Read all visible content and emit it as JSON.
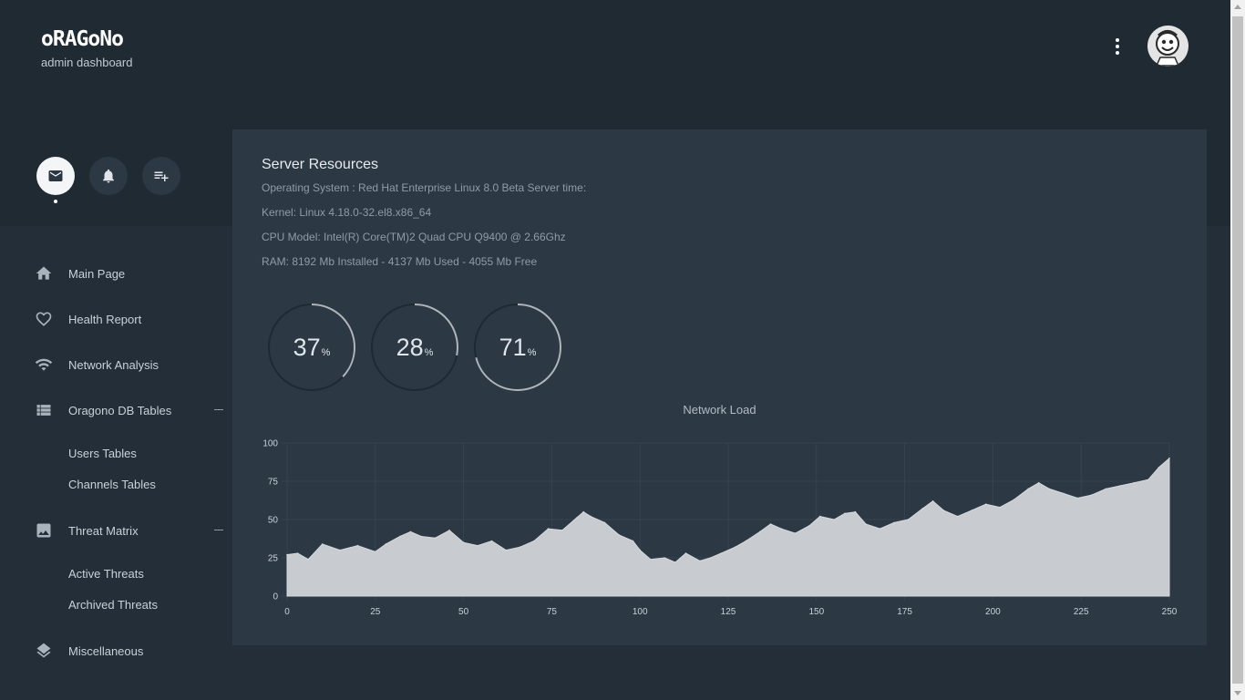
{
  "brand": {
    "logo": "oRAGoNo",
    "subtitle": "admin dashboard"
  },
  "header": {
    "menu_icon": "more-vertical-icon",
    "avatar_icon": "user-avatar"
  },
  "quick_actions": [
    {
      "icon": "mail-icon",
      "active": true
    },
    {
      "icon": "bell-icon",
      "active": false
    },
    {
      "icon": "playlist-add-icon",
      "active": false
    }
  ],
  "sidebar": {
    "items": [
      {
        "label": "Main Page",
        "icon": "home-icon"
      },
      {
        "label": "Health Report",
        "icon": "heart-icon"
      },
      {
        "label": "Network Analysis",
        "icon": "wifi-icon"
      },
      {
        "label": "Oragono DB Tables",
        "icon": "table-icon",
        "expanded": true
      },
      {
        "label": "Threat Matrix",
        "icon": "image-icon",
        "expanded": true
      },
      {
        "label": "Miscellaneous",
        "icon": "layers-icon"
      }
    ],
    "db_tables": [
      "Users Tables",
      "Channels Tables"
    ],
    "threats": [
      "Active Threats",
      "Archived Threats"
    ]
  },
  "panel": {
    "title": "Server Resources",
    "os": "Operating System : Red Hat Enterprise Linux 8.0 Beta Server time:",
    "kernel": "Kernel: Linux 4.18.0-32.el8.x86_64",
    "cpu": "CPU Model: Intel(R) Core(TM)2 Quad CPU Q9400 @ 2.66Ghz",
    "ram": "RAM: 8192 Mb Installed - 4137 Mb Used - 4055 Mb Free"
  },
  "gauges": [
    {
      "value": "37",
      "unit": "%",
      "fraction": 0.37
    },
    {
      "value": "28",
      "unit": "%",
      "fraction": 0.28
    },
    {
      "value": "71",
      "unit": "%",
      "fraction": 0.71
    }
  ],
  "colors": {
    "fill": "#c8ccd0",
    "track": "#1e2a33",
    "arc": "#aeb5bb"
  },
  "chart_data": {
    "type": "area",
    "title": "Network Load",
    "xlim": [
      0,
      250
    ],
    "ylim": [
      0,
      100
    ],
    "x_ticks": [
      0,
      25,
      50,
      75,
      100,
      125,
      150,
      175,
      200,
      225,
      250
    ],
    "y_ticks": [
      0,
      25,
      50,
      75,
      100
    ],
    "grid": true,
    "points": [
      [
        0,
        27
      ],
      [
        3,
        28
      ],
      [
        6,
        24
      ],
      [
        10,
        34
      ],
      [
        15,
        30
      ],
      [
        20,
        33
      ],
      [
        25,
        29
      ],
      [
        28,
        34
      ],
      [
        32,
        39
      ],
      [
        35,
        42
      ],
      [
        38,
        39
      ],
      [
        42,
        38
      ],
      [
        46,
        43
      ],
      [
        50,
        35
      ],
      [
        54,
        33
      ],
      [
        58,
        36
      ],
      [
        62,
        30
      ],
      [
        66,
        32
      ],
      [
        70,
        36
      ],
      [
        74,
        44
      ],
      [
        78,
        43
      ],
      [
        82,
        51
      ],
      [
        84,
        55
      ],
      [
        86,
        52
      ],
      [
        90,
        48
      ],
      [
        94,
        40
      ],
      [
        98,
        36
      ],
      [
        100,
        30
      ],
      [
        103,
        24
      ],
      [
        107,
        25
      ],
      [
        110,
        22
      ],
      [
        113,
        28
      ],
      [
        117,
        23
      ],
      [
        120,
        25
      ],
      [
        123,
        28
      ],
      [
        127,
        32
      ],
      [
        130,
        36
      ],
      [
        134,
        42
      ],
      [
        137,
        47
      ],
      [
        140,
        44
      ],
      [
        144,
        41
      ],
      [
        148,
        46
      ],
      [
        151,
        52
      ],
      [
        155,
        50
      ],
      [
        158,
        54
      ],
      [
        161,
        55
      ],
      [
        164,
        47
      ],
      [
        168,
        44
      ],
      [
        172,
        48
      ],
      [
        176,
        50
      ],
      [
        180,
        57
      ],
      [
        183,
        62
      ],
      [
        186,
        56
      ],
      [
        190,
        52
      ],
      [
        194,
        56
      ],
      [
        198,
        60
      ],
      [
        202,
        58
      ],
      [
        206,
        63
      ],
      [
        210,
        70
      ],
      [
        213,
        74
      ],
      [
        216,
        70
      ],
      [
        220,
        67
      ],
      [
        224,
        64
      ],
      [
        228,
        66
      ],
      [
        232,
        70
      ],
      [
        236,
        72
      ],
      [
        240,
        74
      ],
      [
        244,
        76
      ],
      [
        247,
        84
      ],
      [
        250,
        90
      ]
    ]
  }
}
